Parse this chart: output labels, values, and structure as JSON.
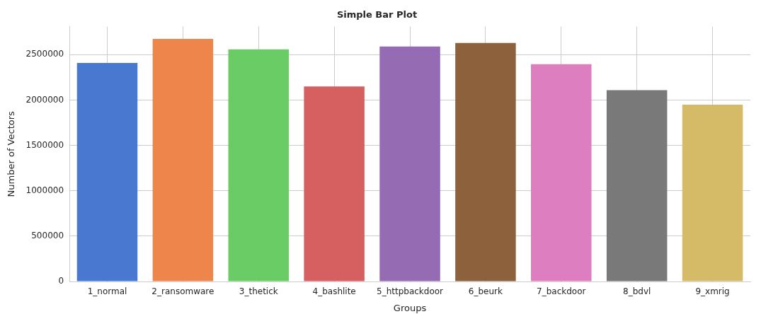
{
  "chart_data": {
    "type": "bar",
    "title": "Simple Bar Plot",
    "xlabel": "Groups",
    "ylabel": "Number of Vectors",
    "categories": [
      "1_normal",
      "2_ransomware",
      "3_thetick",
      "4_bashlite",
      "5_httpbackdoor",
      "6_beurk",
      "7_backdoor",
      "8_bdvl",
      "9_xmrig"
    ],
    "values": [
      2410000,
      2675000,
      2560000,
      2150000,
      2590000,
      2630000,
      2395000,
      2110000,
      1950000
    ],
    "colors": [
      "#4878d0",
      "#ee854a",
      "#6acc64",
      "#d65f5f",
      "#956cb4",
      "#8c613c",
      "#dc7ec0",
      "#797979",
      "#d5bb67"
    ],
    "ylim": [
      0,
      2810000
    ],
    "yticks": [
      0,
      500000,
      1000000,
      1500000,
      2000000,
      2500000
    ],
    "grid": true,
    "legend": false
  }
}
